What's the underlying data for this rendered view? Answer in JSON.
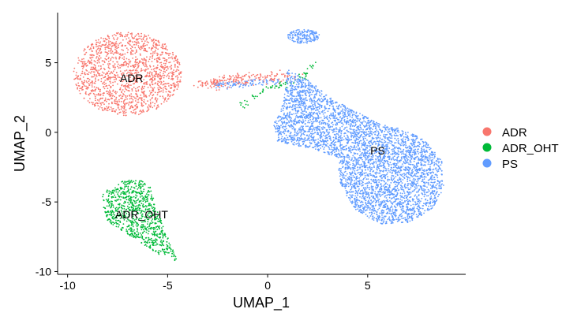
{
  "chart_data": {
    "type": "scatter",
    "xlabel": "UMAP_1",
    "ylabel": "UMAP_2",
    "xlim": [
      -10.5,
      9.9
    ],
    "ylim": [
      -10.2,
      8.6
    ],
    "x_ticks": [
      -10,
      -5,
      0,
      5
    ],
    "x_tick_labels": [
      "-10",
      "-5",
      "0",
      "5"
    ],
    "y_ticks": [
      -10,
      -5,
      0,
      5
    ],
    "y_tick_labels": [
      "-10",
      "-5",
      "0",
      "5"
    ],
    "grid": false,
    "legend_position": "right",
    "series": [
      {
        "name": "ADR",
        "color": "#F8766D"
      },
      {
        "name": "ADR_OHT",
        "color": "#00BA38"
      },
      {
        "name": "PS",
        "color": "#619CFF"
      }
    ],
    "cluster_labels": [
      {
        "text": "ADR",
        "x": -6.8,
        "y": 3.9
      },
      {
        "text": "ADR_OHT",
        "x": -6.3,
        "y": -5.9
      },
      {
        "text": "PS",
        "x": 5.5,
        "y": -1.3
      }
    ],
    "clusters": [
      {
        "series": "ADR",
        "shape": "ellipse",
        "cx": -7.0,
        "cy": 4.2,
        "rx": 2.7,
        "ry": 3.0,
        "n": 1500
      },
      {
        "series": "ADR",
        "shape": "line",
        "points": [
          [
            -3.3,
            3.5
          ],
          [
            -2.0,
            3.7
          ],
          [
            -0.6,
            3.9
          ],
          [
            1.2,
            4.0
          ]
        ],
        "spread": 0.2,
        "n": 220
      },
      {
        "series": "ADR_OHT",
        "shape": "polygon",
        "vertices": [
          [
            -8.3,
            -4.4
          ],
          [
            -7.4,
            -3.6
          ],
          [
            -6.6,
            -3.2
          ],
          [
            -5.9,
            -3.8
          ],
          [
            -5.6,
            -5.3
          ],
          [
            -5.0,
            -7.5
          ],
          [
            -4.5,
            -9.3
          ],
          [
            -5.4,
            -8.8
          ],
          [
            -6.8,
            -7.5
          ],
          [
            -8.0,
            -6.4
          ],
          [
            -8.2,
            -5.4
          ]
        ],
        "n": 850
      },
      {
        "series": "ADR_OHT",
        "shape": "line",
        "points": [
          [
            -1.4,
            1.9
          ],
          [
            0.0,
            3.2
          ],
          [
            1.5,
            3.6
          ],
          [
            2.4,
            4.9
          ]
        ],
        "spread": 0.12,
        "n": 70
      },
      {
        "series": "PS",
        "shape": "polygon",
        "vertices": [
          [
            1.0,
            4.5
          ],
          [
            2.2,
            3.6
          ],
          [
            3.2,
            2.4
          ],
          [
            4.3,
            1.6
          ],
          [
            5.6,
            0.6
          ],
          [
            6.8,
            0.2
          ],
          [
            7.8,
            -0.5
          ],
          [
            8.7,
            -2.0
          ],
          [
            8.8,
            -4.0
          ],
          [
            8.2,
            -5.6
          ],
          [
            7.0,
            -6.5
          ],
          [
            5.6,
            -6.6
          ],
          [
            4.3,
            -5.5
          ],
          [
            3.6,
            -3.6
          ],
          [
            3.5,
            -1.8
          ],
          [
            2.3,
            -1.2
          ],
          [
            0.5,
            -0.7
          ],
          [
            0.3,
            0.6
          ],
          [
            0.8,
            2.2
          ]
        ],
        "n": 4200
      },
      {
        "series": "PS",
        "shape": "ellipse",
        "cx": 1.8,
        "cy": 6.9,
        "rx": 0.8,
        "ry": 0.5,
        "n": 170
      },
      {
        "series": "PS",
        "shape": "line",
        "points": [
          [
            -2.6,
            3.4
          ],
          [
            -1.0,
            3.5
          ],
          [
            0.6,
            3.7
          ]
        ],
        "spread": 0.12,
        "n": 90
      }
    ]
  }
}
